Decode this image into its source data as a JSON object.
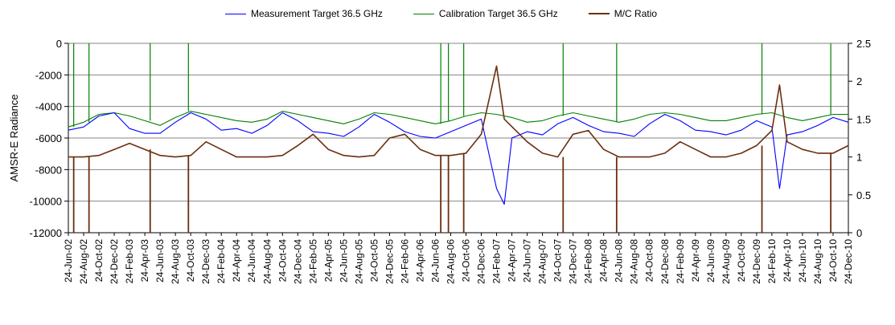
{
  "chart_data": {
    "type": "line",
    "title": "",
    "ylabel": "AMSR-E Radiance",
    "y2label": "",
    "xlabel": "",
    "ylim": [
      -12000,
      0
    ],
    "y2lim": [
      0,
      2.5
    ],
    "yticks": [
      0,
      -2000,
      -4000,
      -6000,
      -8000,
      -10000,
      -12000
    ],
    "y2ticks": [
      2.5,
      2,
      1.5,
      1,
      0.5,
      0
    ],
    "grid": "horizontal",
    "legend_position": "top",
    "xticks": [
      "24-Jun-02",
      "24-Aug-02",
      "24-Oct-02",
      "24-Dec-02",
      "24-Feb-03",
      "24-Apr-03",
      "24-Jun-03",
      "24-Aug-03",
      "24-Oct-03",
      "24-Dec-03",
      "24-Feb-04",
      "24-Apr-04",
      "24-Jun-04",
      "24-Aug-04",
      "24-Oct-04",
      "24-Dec-04",
      "24-Feb-05",
      "24-Apr-05",
      "24-Jun-05",
      "24-Aug-05",
      "24-Oct-05",
      "24-Dec-05",
      "24-Feb-06",
      "24-Apr-06",
      "24-Jun-06",
      "24-Aug-06",
      "24-Oct-06",
      "24-Dec-06",
      "24-Feb-07",
      "24-Apr-07",
      "24-Jun-07",
      "24-Aug-07",
      "24-Oct-07",
      "24-Dec-07",
      "24-Feb-08",
      "24-Apr-08",
      "24-Jun-08",
      "24-Aug-08",
      "24-Oct-08",
      "24-Dec-08",
      "24-Feb-09",
      "24-Apr-09",
      "24-Jun-09",
      "24-Aug-09",
      "24-Oct-09",
      "24-Dec-09",
      "24-Feb-10",
      "24-Apr-10",
      "24-Jun-10",
      "24-Aug-10",
      "24-Oct-10",
      "24-Dec-10"
    ],
    "series": [
      {
        "name": "Measurement Target 36.5 GHz",
        "axis": "left",
        "color": "#0000ff",
        "x": [
          "24-Jun-02",
          "24-Aug-02",
          "24-Oct-02",
          "24-Dec-02",
          "24-Feb-03",
          "24-Apr-03",
          "24-Jun-03",
          "24-Aug-03",
          "24-Oct-03",
          "24-Dec-03",
          "24-Feb-04",
          "24-Apr-04",
          "24-Jun-04",
          "24-Aug-04",
          "24-Oct-04",
          "24-Dec-04",
          "24-Feb-05",
          "24-Apr-05",
          "24-Jun-05",
          "24-Aug-05",
          "24-Oct-05",
          "24-Dec-05",
          "24-Feb-06",
          "24-Apr-06",
          "24-Jun-06",
          "24-Aug-06",
          "24-Oct-06",
          "24-Dec-06",
          "24-Feb-07",
          "24-Mar-07",
          "24-Apr-07",
          "24-Jun-07",
          "24-Aug-07",
          "24-Oct-07",
          "24-Dec-07",
          "24-Feb-08",
          "24-Apr-08",
          "24-Jun-08",
          "24-Aug-08",
          "24-Oct-08",
          "24-Dec-08",
          "24-Feb-09",
          "24-Apr-09",
          "24-Jun-09",
          "24-Aug-09",
          "24-Oct-09",
          "24-Dec-09",
          "24-Feb-10",
          "24-Mar-10",
          "24-Apr-10",
          "24-Jun-10",
          "24-Aug-10",
          "24-Oct-10",
          "24-Dec-10"
        ],
        "values": [
          -5500,
          -5300,
          -4600,
          -4400,
          -5400,
          -5700,
          -5700,
          -5000,
          -4400,
          -4800,
          -5500,
          -5400,
          -5700,
          -5200,
          -4400,
          -4900,
          -5600,
          -5700,
          -5900,
          -5300,
          -4500,
          -5000,
          -5600,
          -5900,
          -6000,
          -5600,
          -5200,
          -4800,
          -9200,
          -10200,
          -6000,
          -5600,
          -5800,
          -5100,
          -4700,
          -5200,
          -5600,
          -5700,
          -5900,
          -5100,
          -4500,
          -4900,
          -5500,
          -5600,
          -5800,
          -5500,
          -4900,
          -5300,
          -9200,
          -5800,
          -5600,
          -5200,
          -4700,
          -5000
        ]
      },
      {
        "name": "Calibration Target 36.5 GHz",
        "axis": "left",
        "color": "#008000",
        "x": [
          "24-Jun-02",
          "24-Aug-02",
          "24-Oct-02",
          "24-Dec-02",
          "24-Feb-03",
          "24-Apr-03",
          "24-Jun-03",
          "24-Aug-03",
          "24-Oct-03",
          "24-Dec-03",
          "24-Feb-04",
          "24-Apr-04",
          "24-Jun-04",
          "24-Aug-04",
          "24-Oct-04",
          "24-Dec-04",
          "24-Feb-05",
          "24-Apr-05",
          "24-Jun-05",
          "24-Aug-05",
          "24-Oct-05",
          "24-Dec-05",
          "24-Feb-06",
          "24-Apr-06",
          "24-Jun-06",
          "24-Aug-06",
          "24-Oct-06",
          "24-Dec-06",
          "24-Feb-07",
          "24-Apr-07",
          "24-Jun-07",
          "24-Aug-07",
          "24-Oct-07",
          "24-Dec-07",
          "24-Feb-08",
          "24-Apr-08",
          "24-Jun-08",
          "24-Aug-08",
          "24-Oct-08",
          "24-Dec-08",
          "24-Feb-09",
          "24-Apr-09",
          "24-Jun-09",
          "24-Aug-09",
          "24-Oct-09",
          "24-Dec-09",
          "24-Feb-10",
          "24-Apr-10",
          "24-Jun-10",
          "24-Aug-10",
          "24-Oct-10",
          "24-Dec-10"
        ],
        "values": [
          -5300,
          -5000,
          -4500,
          -4400,
          -4600,
          -4900,
          -5200,
          -4700,
          -4300,
          -4500,
          -4700,
          -4900,
          -5000,
          -4800,
          -4300,
          -4500,
          -4700,
          -4900,
          -5100,
          -4800,
          -4400,
          -4500,
          -4700,
          -4900,
          -5100,
          -4900,
          -4600,
          -4400,
          -4500,
          -4700,
          -5000,
          -4900,
          -4600,
          -4400,
          -4600,
          -4800,
          -5000,
          -4800,
          -4500,
          -4400,
          -4500,
          -4700,
          -4900,
          -4900,
          -4700,
          -4500,
          -4400,
          -4700,
          -4900,
          -4700,
          -4500,
          -4500
        ],
        "spikes_to_zero": [
          "Jul-02",
          "Sep-02",
          "May-03",
          "Oct-03",
          "Jul-06",
          "Aug-06",
          "Oct-06",
          "Nov-07",
          "Jun-08",
          "Jan-10",
          "Oct-10"
        ]
      },
      {
        "name": "M/C Ratio",
        "axis": "right",
        "color": "#6b2f0f",
        "x": [
          "24-Jun-02",
          "24-Aug-02",
          "24-Oct-02",
          "24-Dec-02",
          "24-Feb-03",
          "24-Apr-03",
          "24-Jun-03",
          "24-Aug-03",
          "24-Oct-03",
          "24-Dec-03",
          "24-Feb-04",
          "24-Apr-04",
          "24-Jun-04",
          "24-Aug-04",
          "24-Oct-04",
          "24-Dec-04",
          "24-Feb-05",
          "24-Apr-05",
          "24-Jun-05",
          "24-Aug-05",
          "24-Oct-05",
          "24-Dec-05",
          "24-Feb-06",
          "24-Apr-06",
          "24-Jun-06",
          "24-Aug-06",
          "24-Oct-06",
          "24-Dec-06",
          "24-Feb-07",
          "24-Mar-07",
          "24-Apr-07",
          "24-Jun-07",
          "24-Aug-07",
          "24-Oct-07",
          "24-Dec-07",
          "24-Feb-08",
          "24-Apr-08",
          "24-Jun-08",
          "24-Aug-08",
          "24-Oct-08",
          "24-Dec-08",
          "24-Feb-09",
          "24-Apr-09",
          "24-Jun-09",
          "24-Aug-09",
          "24-Oct-09",
          "24-Dec-09",
          "24-Feb-10",
          "24-Mar-10",
          "24-Apr-10",
          "24-Jun-10",
          "24-Aug-10",
          "24-Oct-10",
          "24-Dec-10"
        ],
        "values": [
          1.0,
          1.0,
          1.02,
          1.1,
          1.18,
          1.1,
          1.02,
          1.0,
          1.02,
          1.2,
          1.1,
          1.0,
          1.0,
          1.0,
          1.02,
          1.15,
          1.3,
          1.1,
          1.02,
          1.0,
          1.02,
          1.25,
          1.3,
          1.1,
          1.02,
          1.02,
          1.05,
          1.3,
          2.2,
          1.5,
          1.4,
          1.2,
          1.05,
          1.0,
          1.3,
          1.35,
          1.1,
          1.0,
          1.0,
          1.0,
          1.05,
          1.2,
          1.1,
          1.0,
          1.0,
          1.05,
          1.15,
          1.35,
          1.95,
          1.2,
          1.1,
          1.05,
          1.05,
          1.15
        ],
        "spikes_to_zero": [
          "Jul-02",
          "Sep-02",
          "May-03",
          "Oct-03",
          "Jul-06",
          "Aug-06",
          "Oct-06",
          "Nov-07",
          "Jun-08",
          "Jan-10",
          "Oct-10"
        ]
      }
    ]
  }
}
